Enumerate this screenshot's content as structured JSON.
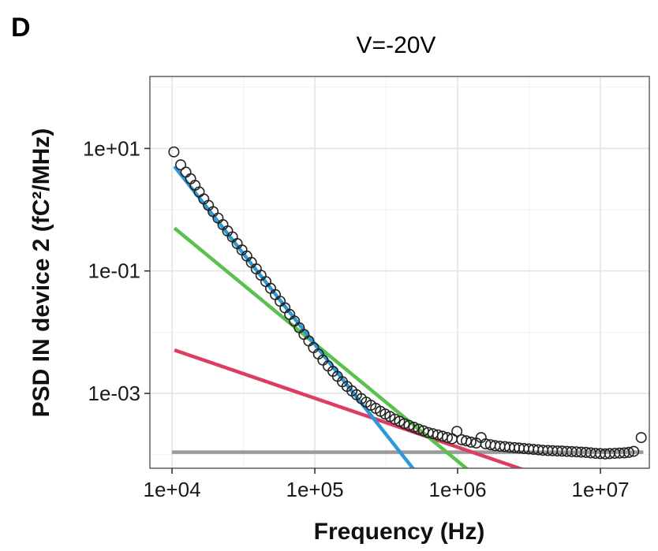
{
  "panel_label": "D",
  "chart_data": {
    "type": "line",
    "title": "V=-20V",
    "xlabel": "Frequency (Hz)",
    "ylabel": "PSD IN device 2 (fC²/MHz)",
    "xscale": "log",
    "yscale": "log",
    "xlim": [
      7000,
      22000000
    ],
    "ylim": [
      6e-05,
      150
    ],
    "grid": true,
    "legend": "none",
    "x_ticks": [
      {
        "value": 10000,
        "label": "1e+04"
      },
      {
        "value": 100000,
        "label": "1e+05"
      },
      {
        "value": 1000000,
        "label": "1e+06"
      },
      {
        "value": 10000000,
        "label": "1e+07"
      }
    ],
    "y_ticks": [
      {
        "value": 10,
        "label": "1e+01"
      },
      {
        "value": 0.1,
        "label": "1e-01"
      },
      {
        "value": 0.001,
        "label": "1e-03"
      }
    ],
    "series": [
      {
        "kind": "line",
        "color": "#9a9a9a",
        "x": [
          10000,
          20000000
        ],
        "y": [
          0.00011,
          0.00011
        ]
      },
      {
        "kind": "line",
        "color": "#dd3d60",
        "x": [
          10400,
          3000000
        ],
        "y": [
          0.0051,
          5.5e-05
        ]
      },
      {
        "kind": "line",
        "color": "#5ac04e",
        "x": [
          10400,
          1200000
        ],
        "y": [
          0.5,
          5.5e-05
        ]
      },
      {
        "kind": "line",
        "color": "#2d9ad8",
        "x": [
          10400,
          500000
        ],
        "y": [
          5.1,
          5.5e-05
        ]
      },
      {
        "kind": "points",
        "color": "#222222",
        "x": [
          10300,
          11500,
          12500,
          13500,
          14500,
          15500,
          16700,
          18000,
          19400,
          21000,
          22700,
          24500,
          26500,
          28600,
          30900,
          33400,
          36000,
          38900,
          42000,
          45400,
          49000,
          52900,
          57200,
          61800,
          66700,
          72000,
          77800,
          84000,
          90700,
          98000,
          106000,
          114000,
          124000,
          134000,
          144000,
          156000,
          168000,
          182000,
          196000,
          212000,
          229000,
          247000,
          267000,
          288000,
          311000,
          336000,
          363000,
          392000,
          423000,
          457000,
          494000,
          533000,
          576000,
          622000,
          672000,
          726000,
          784000,
          847000,
          914000,
          988000,
          1070000,
          1150000,
          1240000,
          1350000,
          1460000,
          1570000,
          1700000,
          1830000,
          1980000,
          2140000,
          2310000,
          2500000,
          2700000,
          2910000,
          3150000,
          3400000,
          3670000,
          3960000,
          4280000,
          4620000,
          4990000,
          5390000,
          5820000,
          6290000,
          6790000,
          7330000,
          7920000,
          8550000,
          9240000,
          9980000,
          10800000,
          11600000,
          12600000,
          13600000,
          14700000,
          15800000,
          17100000,
          19300000
        ],
        "y": [
          8.8,
          5.4,
          4.1,
          3.2,
          2.5,
          1.95,
          1.5,
          1.18,
          0.93,
          0.73,
          0.57,
          0.45,
          0.36,
          0.28,
          0.22,
          0.175,
          0.138,
          0.108,
          0.085,
          0.067,
          0.052,
          0.041,
          0.032,
          0.025,
          0.0195,
          0.0152,
          0.0118,
          0.0092,
          0.0072,
          0.0056,
          0.0044,
          0.0035,
          0.0028,
          0.0023,
          0.0019,
          0.00155,
          0.0013,
          0.0011,
          0.00095,
          0.00082,
          0.00072,
          0.00064,
          0.00057,
          0.00051,
          0.00046,
          0.00042,
          0.00038,
          0.00035,
          0.00032,
          0.0003,
          0.00028,
          0.00026,
          0.000245,
          0.00023,
          0.00022,
          0.00021,
          0.0002,
          0.00019,
          0.000182,
          0.00024,
          0.000175,
          0.000168,
          0.00016,
          0.000155,
          0.00019,
          0.00015,
          0.000145,
          0.00014,
          0.000137,
          0.000135,
          0.000132,
          0.00013,
          0.000128,
          0.000126,
          0.000124,
          0.000122,
          0.00012,
          0.000118,
          0.000117,
          0.000116,
          0.000115,
          0.000114,
          0.000113,
          0.000112,
          0.000111,
          0.00011,
          0.000109,
          0.000107,
          0.000105,
          0.000104,
          0.000103,
          0.000104,
          0.000105,
          0.000106,
          0.000107,
          0.000109,
          0.000113,
          0.00019
        ]
      }
    ]
  }
}
